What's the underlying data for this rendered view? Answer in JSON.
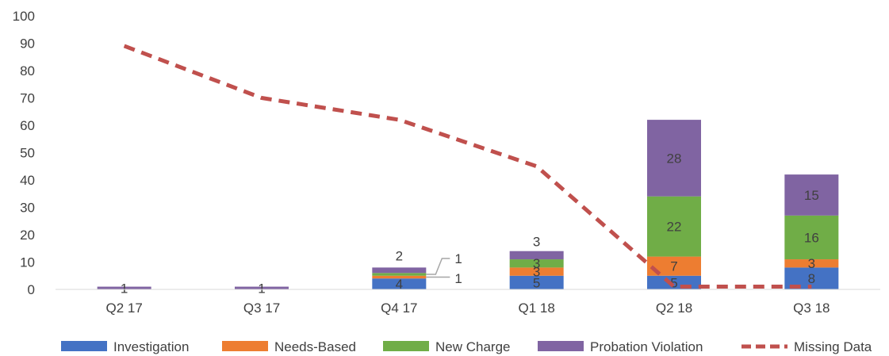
{
  "chart_data": {
    "type": "bar",
    "stacked": true,
    "categories": [
      "Q2 17",
      "Q3 17",
      "Q4 17",
      "Q1 18",
      "Q2 18",
      "Q3 18"
    ],
    "series": [
      {
        "name": "Investigation",
        "values": [
          0,
          0,
          4,
          5,
          5,
          8
        ],
        "color": "#4472C4"
      },
      {
        "name": "Needs-Based",
        "values": [
          0,
          0,
          1,
          3,
          7,
          3
        ],
        "color": "#ED7D31"
      },
      {
        "name": "New Charge",
        "values": [
          0,
          0,
          1,
          3,
          22,
          16
        ],
        "color": "#70AD47"
      },
      {
        "name": "Probation Violation",
        "values": [
          1,
          1,
          2,
          3,
          28,
          15
        ],
        "color": "#8064A2"
      }
    ],
    "line_series": {
      "name": "Missing Data",
      "type": "line",
      "dashed": true,
      "values": [
        89,
        70,
        62,
        45,
        1,
        1
      ],
      "color": "#C0504D"
    },
    "data_labels": [
      {
        "category": "Q2 17",
        "series": "Probation Violation",
        "text": "1"
      },
      {
        "category": "Q3 17",
        "series": "Probation Violation",
        "text": "1"
      },
      {
        "category": "Q4 17",
        "series": "Investigation",
        "text": "4"
      },
      {
        "category": "Q4 17",
        "series": "Needs-Based",
        "text": "1"
      },
      {
        "category": "Q4 17",
        "series": "New Charge",
        "text": "1"
      },
      {
        "category": "Q4 17",
        "series": "Probation Violation",
        "text": "2"
      },
      {
        "category": "Q1 18",
        "series": "Investigation",
        "text": "5"
      },
      {
        "category": "Q1 18",
        "series": "Needs-Based",
        "text": "3"
      },
      {
        "category": "Q1 18",
        "series": "New Charge",
        "text": "3"
      },
      {
        "category": "Q1 18",
        "series": "Probation Violation",
        "text": "3"
      },
      {
        "category": "Q2 18",
        "series": "Investigation",
        "text": "5"
      },
      {
        "category": "Q2 18",
        "series": "Needs-Based",
        "text": "7"
      },
      {
        "category": "Q2 18",
        "series": "New Charge",
        "text": "22"
      },
      {
        "category": "Q2 18",
        "series": "Probation Violation",
        "text": "28"
      },
      {
        "category": "Q3 18",
        "series": "Investigation",
        "text": "8"
      },
      {
        "category": "Q3 18",
        "series": "Needs-Based",
        "text": "3"
      },
      {
        "category": "Q3 18",
        "series": "New Charge",
        "text": "16"
      },
      {
        "category": "Q3 18",
        "series": "Probation Violation",
        "text": "15"
      }
    ],
    "yticks": [
      "0",
      "10",
      "20",
      "30",
      "40",
      "50",
      "60",
      "70",
      "80",
      "90",
      "100"
    ],
    "ylim": [
      0,
      100
    ],
    "title": "",
    "xlabel": "",
    "ylabel": "",
    "grid": false,
    "legend": {
      "position": "bottom",
      "items": [
        "Investigation",
        "Needs-Based",
        "New Charge",
        "Probation Violation",
        "Missing Data"
      ]
    }
  }
}
